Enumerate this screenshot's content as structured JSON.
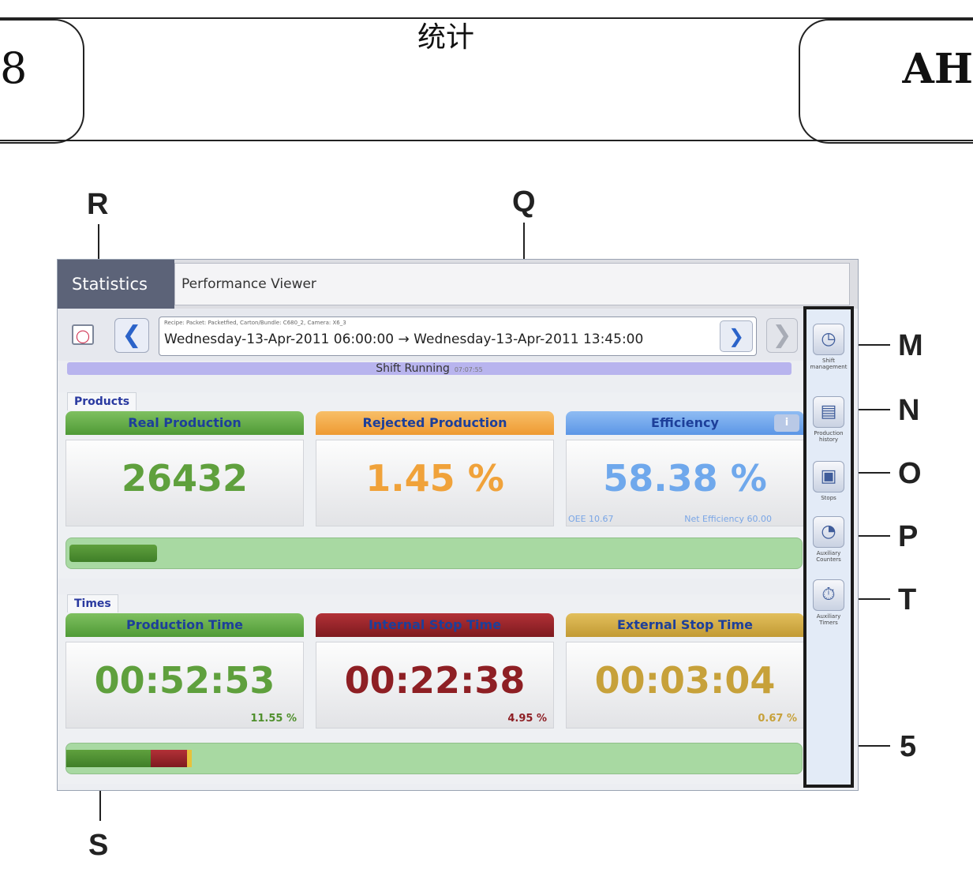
{
  "page_header": {
    "section_number": "8",
    "section_title": "统计",
    "model_code": "AH"
  },
  "callouts": {
    "R": "R",
    "Q": "Q",
    "S": "S",
    "M": "M",
    "N": "N",
    "O": "O",
    "P": "P",
    "T": "T",
    "five": "5"
  },
  "tabs": {
    "statistics": "Statistics",
    "performance_viewer": "Performance Viewer"
  },
  "selector": {
    "meta": "Recipe: Packet: Packetfied, Carton/Bundle: C680_2, Camera: X6_3",
    "range": "Wednesday-13-Apr-2011 06:00:00 → Wednesday-13-Apr-2011 13:45:00"
  },
  "icons": {
    "calendar": "calendar-icon",
    "prev": "chevron-left-icon",
    "next": "chevron-right-icon",
    "dropdown": "chevron-down-icon",
    "info": "info-icon"
  },
  "shift": {
    "label": "Shift Running",
    "sub": "07:07:55"
  },
  "products": {
    "label": "Products",
    "real": {
      "title": "Real Production",
      "value": "26432",
      "color": "#5fa03d"
    },
    "rejected": {
      "title": "Rejected Production",
      "value": "1.45 %",
      "color": "#f0a23a"
    },
    "efficiency": {
      "title": "Efficiency",
      "value": "58.38 %",
      "oee": "OEE 10.67",
      "net": "Net Efficiency 60.00",
      "color": "#6fa8ec"
    },
    "progress_fraction": 0.12
  },
  "times": {
    "label": "Times",
    "production": {
      "title": "Production Time",
      "value": "00:52:53",
      "pct": "11.55 %",
      "color": "#5fa03d"
    },
    "internal": {
      "title": "Internal Stop Time",
      "value": "00:22:38",
      "pct": "4.95 %",
      "color": "#8e1f24"
    },
    "external": {
      "title": "External Stop Time",
      "value": "00:03:04",
      "pct": "0.67 %",
      "color": "#c7a13a"
    },
    "progress": {
      "production": 0.1155,
      "internal": 0.0495,
      "external": 0.0067
    }
  },
  "sidebar": {
    "items": [
      {
        "icon": "clock-calendar-icon",
        "label": "Shift management"
      },
      {
        "icon": "document-history-icon",
        "label": "Production history"
      },
      {
        "icon": "chart-stops-icon",
        "label": "Stops"
      },
      {
        "icon": "counter-gauge-icon",
        "label": "Auxiliary Counters"
      },
      {
        "icon": "auxiliary-timers-icon",
        "label": "Auxiliary Timers"
      }
    ]
  }
}
